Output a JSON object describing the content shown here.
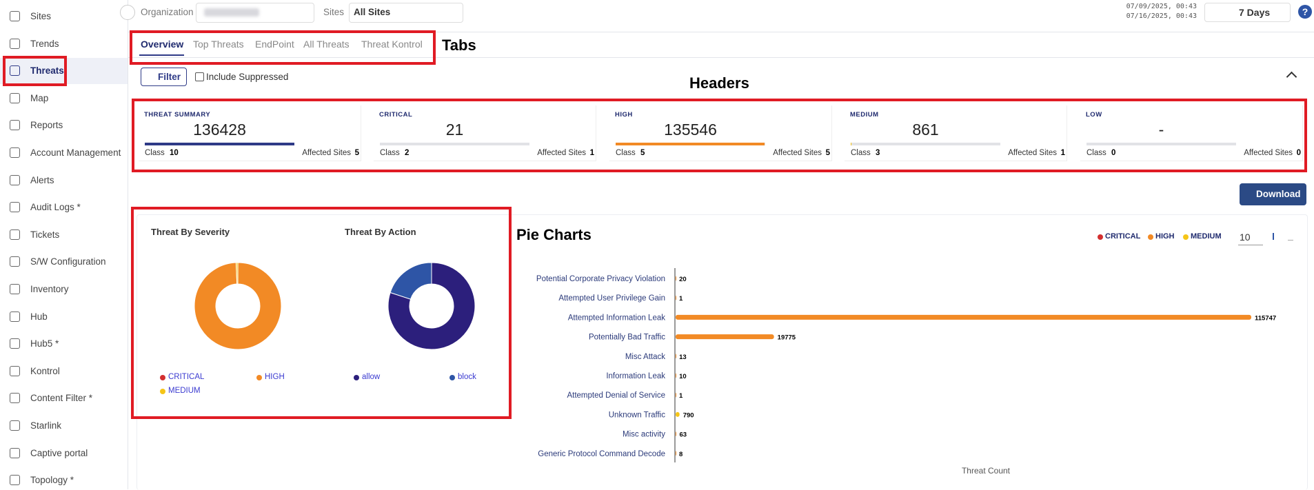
{
  "sidebar": {
    "items": [
      "Sites",
      "Trends",
      "Threats",
      "Map",
      "Reports",
      "Account Management",
      "Alerts",
      "Audit Logs *",
      "Tickets",
      "S/W Configuration",
      "Inventory",
      "Hub",
      "Hub5 *",
      "Kontrol",
      "Content Filter *",
      "Starlink",
      "Captive portal",
      "Topology *"
    ],
    "active": 2
  },
  "topbar": {
    "organization_label": "Organization",
    "sites_label": "Sites",
    "sites_value": "All Sites",
    "date_range": [
      "07/09/2025, 00:43",
      "07/16/2025, 00:43"
    ],
    "period": "7 Days",
    "help": "?"
  },
  "tabs": {
    "items": [
      "Overview",
      "Top Threats",
      "EndPoint",
      "All Threats",
      "Threat Kontrol"
    ],
    "active": 0
  },
  "annotations": {
    "tabs": "Tabs",
    "headers": "Headers",
    "pie_charts": "Pie Charts"
  },
  "filter": {
    "button": "Filter",
    "checkbox": "Include Suppressed"
  },
  "cards": [
    {
      "title": "THREAT SUMMARY",
      "value": 136428,
      "color": "#2e3a87",
      "class_label": "Class",
      "class": 10,
      "sites_label": "Affected Sites",
      "sites": 5
    },
    {
      "title": "CRITICAL",
      "value": 21,
      "color": "#d32f2f",
      "class_label": "Class",
      "class": 2,
      "sites_label": "Affected Sites",
      "sites": 1
    },
    {
      "title": "HIGH",
      "value": 135546,
      "color": "#f28a25",
      "class_label": "Class",
      "class": 5,
      "sites_label": "Affected Sites",
      "sites": 5
    },
    {
      "title": "MEDIUM",
      "value": 861,
      "color": "#f5c518",
      "class_label": "Class",
      "class": 3,
      "sites_label": "Affected Sites",
      "sites": 1
    },
    {
      "title": "LOW",
      "value": "-",
      "color": "#2e55a6",
      "class_label": "Class",
      "class": 0,
      "sites_label": "Affected Sites",
      "sites": 0
    }
  ],
  "download": "Download",
  "pies": [
    {
      "title": "Threat By Severity",
      "slices": [
        {
          "name": "CRITICAL",
          "color": "#d32f2f",
          "value": 21
        },
        {
          "name": "HIGH",
          "color": "#f28a25",
          "value": 135546
        },
        {
          "name": "MEDIUM",
          "color": "#f5c518",
          "value": 861
        }
      ]
    },
    {
      "title": "Threat By Action",
      "slices": [
        {
          "name": "allow",
          "color": "#2c1f7c",
          "value": 80
        },
        {
          "name": "block",
          "color": "#2e55a6",
          "value": 20
        }
      ]
    }
  ],
  "bar_chart": {
    "legend": [
      {
        "name": "CRITICAL",
        "color": "#d32f2f"
      },
      {
        "name": "HIGH",
        "color": "#f28a25"
      },
      {
        "name": "MEDIUM",
        "color": "#f5c518"
      }
    ],
    "page_size": "10",
    "categories": [
      "Potential Corporate Privacy Violation",
      "Attempted User Privilege Gain",
      "Attempted Information Leak",
      "Potentially Bad Traffic",
      "Misc Attack",
      "Information Leak",
      "Attempted Denial of Service",
      "Unknown Traffic",
      "Misc activity",
      "Generic Protocol Command Decode"
    ],
    "values": [
      20,
      1,
      115747,
      19775,
      13,
      10,
      1,
      790,
      63,
      8
    ],
    "colors": [
      "#f28a25",
      "#f28a25",
      "#f28a25",
      "#f28a25",
      "#f28a25",
      "#f28a25",
      "#f28a25",
      "#f5c518",
      "#f28a25",
      "#f28a25"
    ],
    "x_label": "Threat Count"
  }
}
